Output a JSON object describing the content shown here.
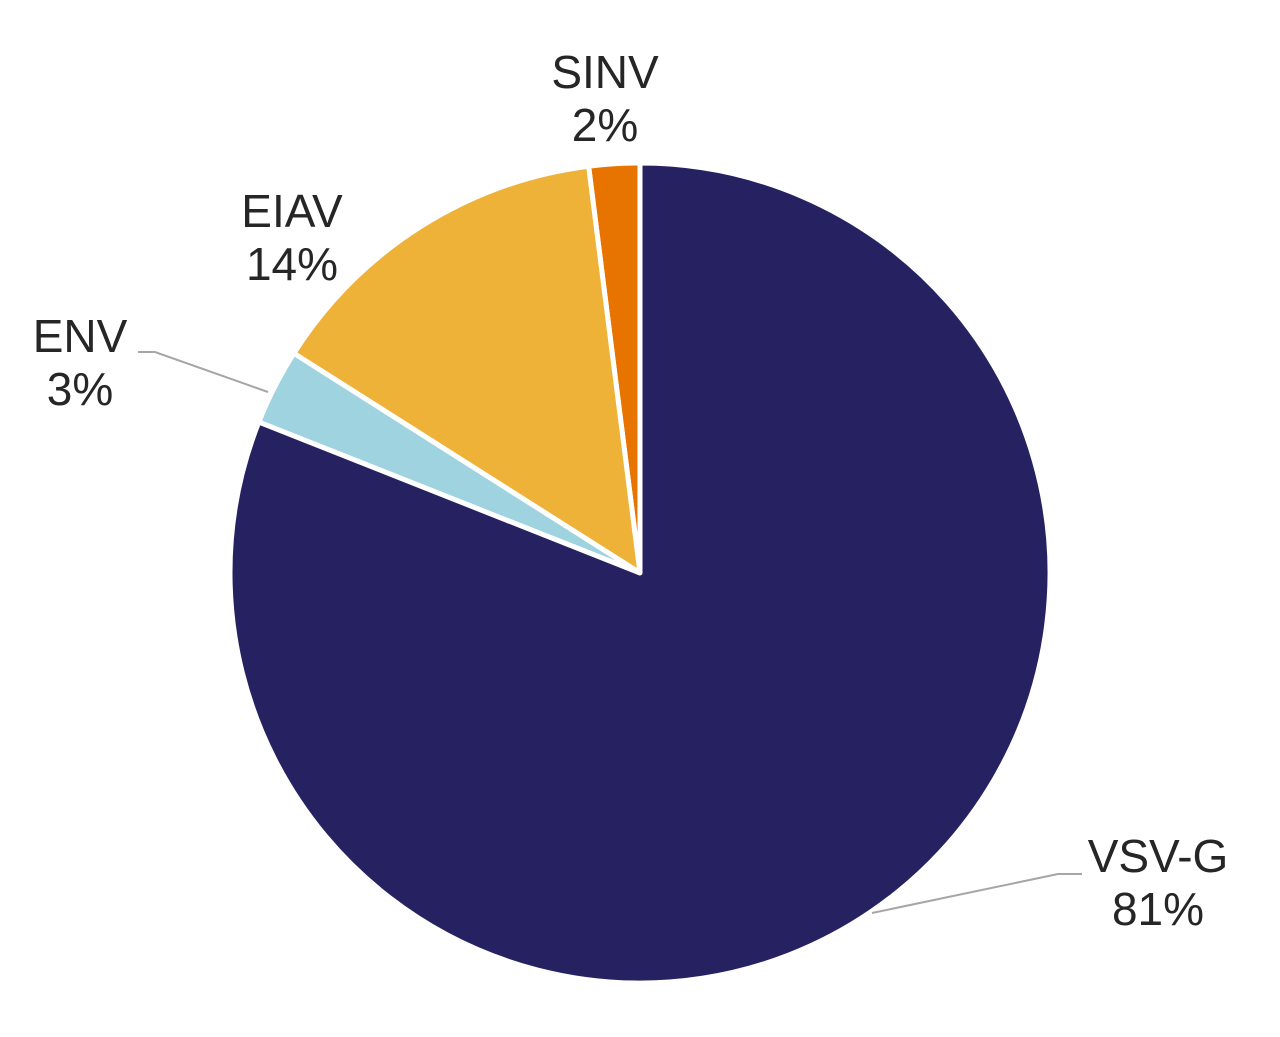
{
  "chart_data": {
    "type": "pie",
    "title": "",
    "start_angle_deg": 0,
    "direction": "counterclockwise",
    "slices": [
      {
        "name": "SINV",
        "value": 2,
        "label": "2%",
        "color": "#e87400"
      },
      {
        "name": "EIAV",
        "value": 14,
        "label": "14%",
        "color": "#eeb238"
      },
      {
        "name": "ENV",
        "value": 3,
        "label": "3%",
        "color": "#9fd3df"
      },
      {
        "name": "VSV-G",
        "value": 81,
        "label": "81%",
        "color": "#262261"
      }
    ],
    "legend": "none",
    "data_labels": "outside"
  }
}
